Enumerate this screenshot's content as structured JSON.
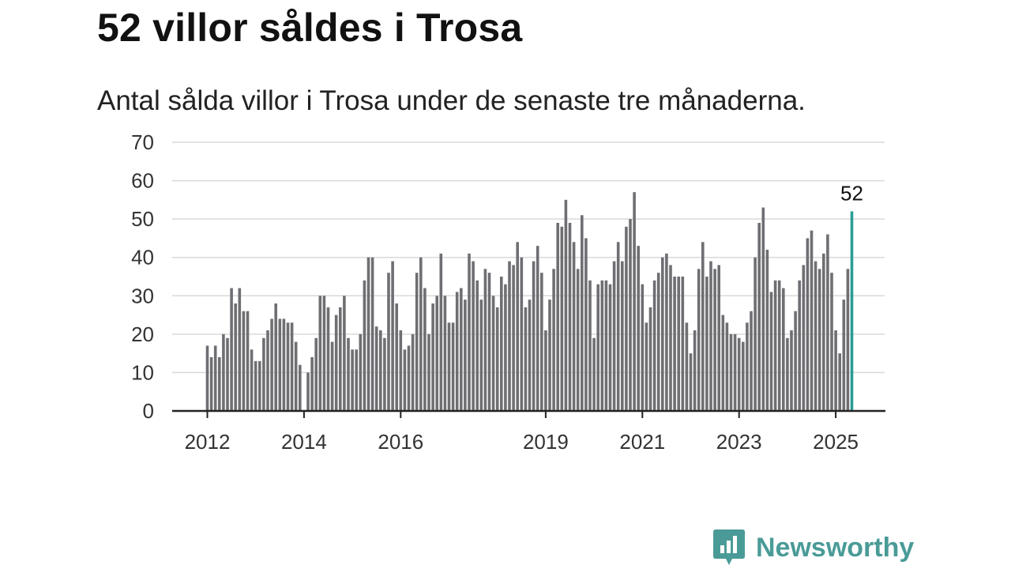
{
  "title": "52 villor såldes i Trosa",
  "subtitle": "Antal sålda villor i Trosa under de senaste tre månaderna.",
  "brand": {
    "name": "Newsworthy",
    "icon": "newsworthy-logo-icon",
    "color": "#4a9b97"
  },
  "chart_data": {
    "type": "bar",
    "title": "52 villor såldes i Trosa",
    "subtitle": "Antal sålda villor i Trosa under de senaste tre månaderna.",
    "xlabel": "",
    "ylabel": "",
    "ylim": [
      0,
      70
    ],
    "yticks": [
      0,
      10,
      20,
      30,
      40,
      50,
      60,
      70
    ],
    "xticks": [
      "2012",
      "2014",
      "2016",
      "2019",
      "2021",
      "2023",
      "2025"
    ],
    "grid": true,
    "legend": "none",
    "bar_color": "#6f6e73",
    "highlight_color": "#2a9d96",
    "x_start": "2012-01",
    "values": [
      17,
      14,
      17,
      14,
      20,
      19,
      32,
      28,
      32,
      26,
      26,
      16,
      13,
      13,
      19,
      21,
      24,
      28,
      24,
      24,
      23,
      23,
      18,
      12,
      0,
      10,
      14,
      19,
      30,
      30,
      27,
      18,
      25,
      27,
      30,
      19,
      16,
      16,
      20,
      34,
      40,
      40,
      22,
      21,
      19,
      36,
      39,
      28,
      21,
      16,
      17,
      20,
      36,
      40,
      32,
      20,
      28,
      30,
      41,
      30,
      23,
      23,
      31,
      32,
      29,
      41,
      39,
      34,
      29,
      37,
      36,
      30,
      27,
      35,
      33,
      39,
      38,
      44,
      40,
      27,
      29,
      39,
      43,
      36,
      21,
      29,
      37,
      49,
      48,
      55,
      49,
      44,
      37,
      51,
      45,
      34,
      19,
      33,
      34,
      34,
      33,
      39,
      44,
      39,
      48,
      50,
      57,
      43,
      33,
      23,
      27,
      34,
      36,
      40,
      41,
      38,
      35,
      35,
      35,
      23,
      15,
      21,
      37,
      44,
      35,
      39,
      37,
      38,
      25,
      23,
      20,
      20,
      19,
      18,
      23,
      26,
      40,
      49,
      53,
      42,
      31,
      34,
      34,
      32,
      19,
      21,
      26,
      34,
      38,
      45,
      47,
      39,
      37,
      41,
      46,
      36,
      21,
      15,
      29,
      37,
      52
    ],
    "highlight_index": 160,
    "highlight_label": "52"
  }
}
